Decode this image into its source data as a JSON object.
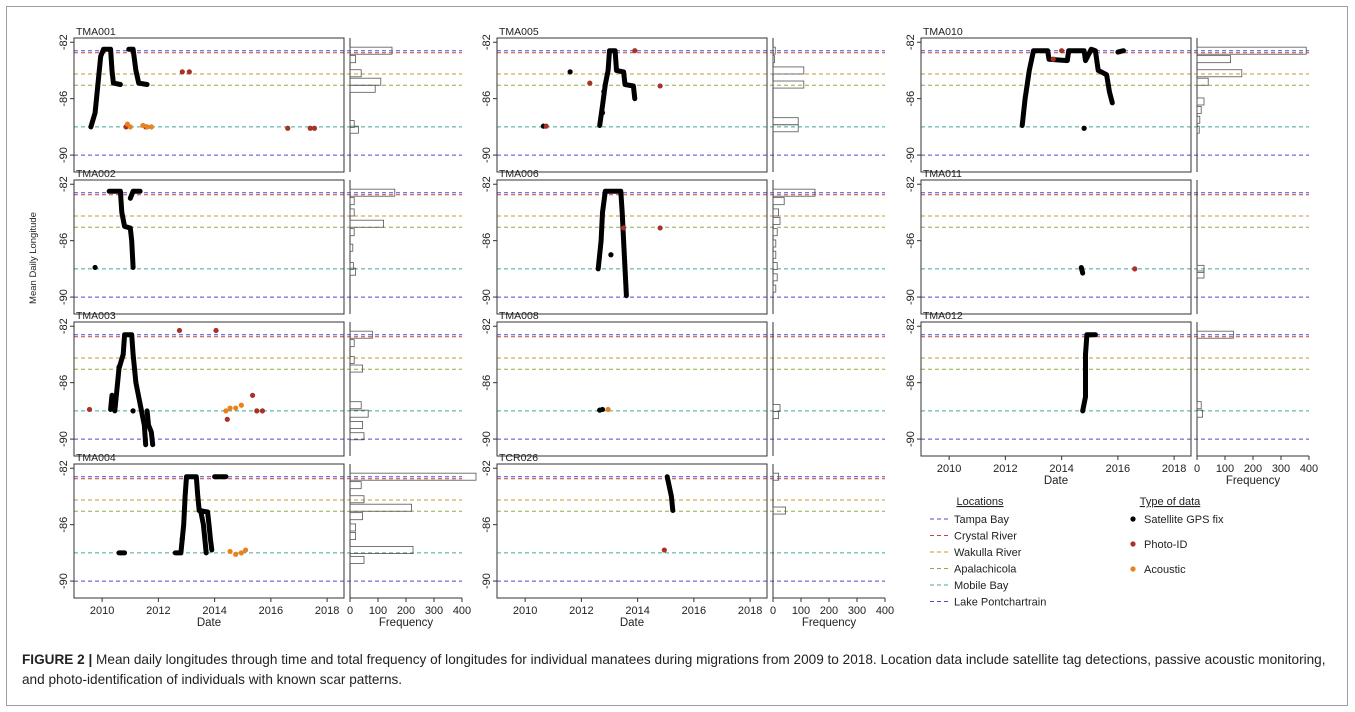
{
  "caption": {
    "label": "FIGURE 2 |",
    "text": " Mean daily longitudes through time and total frequency of longitudes for individual manatees during migrations from 2009 to 2018. Location data include satellite tag detections, passive acoustic monitoring, and photo-identification of individuals with known scar patterns."
  },
  "chart_data": {
    "type": "scatter",
    "ylabel": "Mean Daily Longitude",
    "xlabel": "Date",
    "hist_xlabel": "Frequency",
    "x_range": [
      2009,
      2018.6
    ],
    "x_ticks": [
      2010,
      2012,
      2014,
      2016,
      2018
    ],
    "y_range": [
      -91.2,
      -81.7
    ],
    "y_ticks": [
      -82,
      -86,
      -90
    ],
    "hist_range": [
      0,
      400
    ],
    "hist_ticks": [
      0,
      100,
      200,
      300,
      400
    ],
    "locations_title": "Locations",
    "datatype_title": "Type of data",
    "locations": [
      {
        "name": "Tampa Bay",
        "lon": -82.6,
        "color": "#4a4ad0"
      },
      {
        "name": "Crystal River",
        "lon": -82.75,
        "color": "#c84040"
      },
      {
        "name": "Wakulla River",
        "lon": -84.25,
        "color": "#c89a30"
      },
      {
        "name": "Apalachicola",
        "lon": -85.05,
        "color": "#8ab040"
      },
      {
        "name": "Mobile Bay",
        "lon": -88.0,
        "color": "#40a8a0"
      },
      {
        "name": "Lake Pontchartrain",
        "lon": -90.0,
        "color": "#4a4ad0"
      }
    ],
    "data_types": [
      {
        "name": "Satellite GPS fix",
        "color": "#000000"
      },
      {
        "name": "Photo-ID",
        "color": "#a83228"
      },
      {
        "name": "Acoustic",
        "color": "#e8821e"
      }
    ],
    "panels": [
      {
        "id": "TMA001",
        "tracks": [
          [
            [
              2009.6,
              -88
            ],
            [
              2009.75,
              -87
            ],
            [
              2009.85,
              -85
            ],
            [
              2009.95,
              -83
            ],
            [
              2010.05,
              -82.5
            ],
            [
              2010.3,
              -82.5
            ],
            [
              2010.35,
              -84
            ],
            [
              2010.4,
              -84.9
            ],
            [
              2010.65,
              -85
            ]
          ],
          [
            [
              2010.95,
              -82.5
            ],
            [
              2011.1,
              -82.5
            ],
            [
              2011.2,
              -84
            ],
            [
              2011.3,
              -84.9
            ],
            [
              2011.6,
              -85
            ]
          ]
        ],
        "gps": [],
        "photo": [
          [
            2010.85,
            -88
          ],
          [
            2011.55,
            -88
          ],
          [
            2012.85,
            -84.1
          ],
          [
            2013.1,
            -84.1
          ],
          [
            2016.6,
            -88.1
          ],
          [
            2017.4,
            -88.1
          ],
          [
            2017.55,
            -88.1
          ]
        ],
        "acoustic": [
          [
            2010.9,
            -87.8
          ],
          [
            2011.0,
            -88.0
          ],
          [
            2011.45,
            -87.9
          ],
          [
            2011.6,
            -88.0
          ],
          [
            2011.75,
            -88.0
          ]
        ],
        "hist": [
          [
            -82.6,
            150
          ],
          [
            -83.2,
            20
          ],
          [
            -84.2,
            40
          ],
          [
            -84.8,
            110
          ],
          [
            -85.3,
            90
          ],
          [
            -87.8,
            15
          ],
          [
            -88.2,
            30
          ]
        ]
      },
      {
        "id": "TMA005",
        "tracks": [
          [
            [
              2012.65,
              -87.9
            ],
            [
              2012.75,
              -86.5
            ],
            [
              2012.85,
              -85
            ],
            [
              2012.95,
              -84
            ],
            [
              2013.0,
              -82.6
            ],
            [
              2013.2,
              -82.6
            ],
            [
              2013.25,
              -84
            ],
            [
              2013.5,
              -84.1
            ],
            [
              2013.55,
              -85
            ],
            [
              2013.85,
              -85.1
            ],
            [
              2013.9,
              -86
            ]
          ]
        ],
        "gps": [
          [
            2010.65,
            -87.95
          ],
          [
            2011.6,
            -84.1
          ],
          [
            2012.75,
            -87.0
          ],
          [
            2012.8,
            -85.5
          ]
        ],
        "photo": [
          [
            2010.75,
            -87.95
          ],
          [
            2012.3,
            -84.9
          ],
          [
            2013.9,
            -82.6
          ],
          [
            2014.8,
            -85.1
          ]
        ],
        "acoustic": [],
        "hist": [
          [
            -82.6,
            8
          ],
          [
            -83.2,
            5
          ],
          [
            -84.0,
            110
          ],
          [
            -85.0,
            110
          ],
          [
            -87.6,
            90
          ],
          [
            -88.1,
            90
          ]
        ]
      },
      {
        "id": "TMA010",
        "tracks": [
          [
            [
              2012.6,
              -87.9
            ],
            [
              2012.7,
              -86
            ],
            [
              2012.85,
              -84
            ],
            [
              2013.0,
              -82.6
            ],
            [
              2013.5,
              -82.6
            ],
            [
              2013.55,
              -83.2
            ],
            [
              2014.2,
              -83.3
            ],
            [
              2014.25,
              -82.6
            ],
            [
              2014.8,
              -82.6
            ],
            [
              2014.85,
              -83.3
            ],
            [
              2015.05,
              -82.5
            ],
            [
              2015.2,
              -82.6
            ],
            [
              2015.3,
              -84
            ],
            [
              2015.6,
              -84.3
            ],
            [
              2015.7,
              -85.5
            ],
            [
              2015.8,
              -86.3
            ]
          ],
          [
            [
              2016.0,
              -82.7
            ],
            [
              2016.2,
              -82.6
            ]
          ]
        ],
        "gps": [
          [
            2014.8,
            -88.1
          ]
        ],
        "photo": [
          [
            2013.7,
            -83.2
          ],
          [
            2014.0,
            -82.6
          ]
        ],
        "acoustic": [],
        "hist": [
          [
            -82.6,
            390
          ],
          [
            -83.2,
            120
          ],
          [
            -84.2,
            160
          ],
          [
            -84.8,
            40
          ],
          [
            -86.2,
            25
          ],
          [
            -86.8,
            15
          ],
          [
            -87.5,
            10
          ],
          [
            -88.2,
            8
          ]
        ]
      },
      {
        "id": "TMA002",
        "tracks": [
          [
            [
              2010.25,
              -82.5
            ],
            [
              2010.65,
              -82.5
            ],
            [
              2010.7,
              -84
            ],
            [
              2010.8,
              -85
            ],
            [
              2011.0,
              -85.1
            ],
            [
              2011.05,
              -86
            ],
            [
              2011.1,
              -87.9
            ]
          ],
          [
            [
              2011.0,
              -83
            ],
            [
              2011.1,
              -82.5
            ],
            [
              2011.35,
              -82.5
            ]
          ]
        ],
        "gps": [
          [
            2009.75,
            -87.9
          ]
        ],
        "photo": [],
        "acoustic": [],
        "hist": [
          [
            -82.6,
            160
          ],
          [
            -83.2,
            15
          ],
          [
            -84.0,
            15
          ],
          [
            -84.8,
            120
          ],
          [
            -85.4,
            15
          ],
          [
            -86.5,
            10
          ],
          [
            -87.8,
            12
          ],
          [
            -88.2,
            20
          ]
        ]
      },
      {
        "id": "TMA006",
        "tracks": [
          [
            [
              2012.6,
              -88
            ],
            [
              2012.7,
              -86
            ],
            [
              2012.75,
              -84
            ],
            [
              2012.85,
              -82.5
            ],
            [
              2013.4,
              -82.5
            ],
            [
              2013.45,
              -84
            ],
            [
              2013.5,
              -86
            ],
            [
              2013.6,
              -89.9
            ]
          ]
        ],
        "gps": [
          [
            2013.05,
            -87
          ]
        ],
        "photo": [
          [
            2013.5,
            -85.1
          ],
          [
            2014.8,
            -85.1
          ]
        ],
        "acoustic": [],
        "hist": [
          [
            -82.6,
            150
          ],
          [
            -83.2,
            40
          ],
          [
            -84.0,
            20
          ],
          [
            -84.6,
            25
          ],
          [
            -85.4,
            15
          ],
          [
            -86.2,
            10
          ],
          [
            -87.0,
            10
          ],
          [
            -87.8,
            15
          ],
          [
            -88.6,
            15
          ],
          [
            -89.4,
            10
          ]
        ]
      },
      {
        "id": "TMA011",
        "tracks": [
          [
            [
              2014.7,
              -87.9
            ],
            [
              2014.75,
              -88.3
            ]
          ]
        ],
        "gps": [],
        "photo": [
          [
            2016.6,
            -88
          ]
        ],
        "acoustic": [],
        "hist": [
          [
            -88.0,
            25
          ],
          [
            -88.4,
            25
          ]
        ]
      },
      {
        "id": "TMA003",
        "tracks": [
          [
            [
              2010.45,
              -88
            ],
            [
              2010.55,
              -86
            ],
            [
              2010.6,
              -85
            ],
            [
              2010.75,
              -84
            ],
            [
              2010.8,
              -82.6
            ],
            [
              2011.05,
              -82.6
            ],
            [
              2011.1,
              -84
            ],
            [
              2011.2,
              -86
            ],
            [
              2011.3,
              -87
            ],
            [
              2011.4,
              -88
            ],
            [
              2011.5,
              -89
            ],
            [
              2011.55,
              -90.4
            ]
          ],
          [
            [
              2011.6,
              -88
            ],
            [
              2011.65,
              -89
            ],
            [
              2011.75,
              -89.5
            ],
            [
              2011.8,
              -90.4
            ]
          ],
          [
            [
              2010.3,
              -87.9
            ],
            [
              2010.35,
              -86.9
            ]
          ]
        ],
        "gps": [
          [
            2010.6,
            -84.9
          ],
          [
            2011.1,
            -88
          ]
        ],
        "photo": [
          [
            2009.55,
            -87.9
          ],
          [
            2012.75,
            -82.3
          ],
          [
            2014.05,
            -82.3
          ],
          [
            2014.45,
            -88.6
          ],
          [
            2015.35,
            -86.9
          ],
          [
            2015.5,
            -88
          ],
          [
            2015.7,
            -88
          ]
        ],
        "acoustic": [
          [
            2014.4,
            -88
          ],
          [
            2014.55,
            -87.8
          ],
          [
            2014.75,
            -87.8
          ],
          [
            2014.95,
            -87.6
          ]
        ],
        "hist": [
          [
            -82.6,
            80
          ],
          [
            -83.2,
            15
          ],
          [
            -84.4,
            15
          ],
          [
            -85.0,
            45
          ],
          [
            -87.6,
            40
          ],
          [
            -88.2,
            65
          ],
          [
            -89.0,
            45
          ],
          [
            -89.8,
            50
          ]
        ]
      },
      {
        "id": "TMA008",
        "tracks": [],
        "gps": [
          [
            2012.65,
            -87.95
          ],
          [
            2012.75,
            -87.9
          ]
        ],
        "photo": [],
        "acoustic": [
          [
            2012.95,
            -87.9
          ]
        ],
        "hist": [
          [
            -87.8,
            25
          ],
          [
            -88.3,
            20
          ]
        ]
      },
      {
        "id": "TMA012",
        "tracks": [
          [
            [
              2014.75,
              -88
            ],
            [
              2014.85,
              -87
            ],
            [
              2014.85,
              -84
            ],
            [
              2014.9,
              -82.6
            ],
            [
              2015.2,
              -82.6
            ]
          ]
        ],
        "gps": [],
        "photo": [],
        "acoustic": [],
        "hist": [
          [
            -82.6,
            130
          ],
          [
            -87.6,
            15
          ],
          [
            -88.2,
            20
          ]
        ]
      },
      {
        "id": "TMA004",
        "tracks": [
          [
            [
              2010.6,
              -88
            ],
            [
              2010.8,
              -88
            ]
          ],
          [
            [
              2012.6,
              -88
            ],
            [
              2012.8,
              -88
            ],
            [
              2012.9,
              -86
            ],
            [
              2012.95,
              -84
            ],
            [
              2013.0,
              -82.6
            ],
            [
              2013.35,
              -82.6
            ],
            [
              2013.4,
              -84
            ],
            [
              2013.45,
              -85
            ],
            [
              2013.75,
              -85.1
            ],
            [
              2013.8,
              -86
            ],
            [
              2013.85,
              -87
            ],
            [
              2013.9,
              -87.8
            ]
          ],
          [
            [
              2013.5,
              -85
            ],
            [
              2013.6,
              -86
            ],
            [
              2013.65,
              -87
            ],
            [
              2013.7,
              -88
            ]
          ],
          [
            [
              2014.0,
              -82.6
            ],
            [
              2014.4,
              -82.6
            ]
          ]
        ],
        "gps": [
          [
            2012.85,
            -87
          ]
        ],
        "photo": [],
        "acoustic": [
          [
            2014.55,
            -87.9
          ],
          [
            2014.75,
            -88.1
          ],
          [
            2014.95,
            -88
          ],
          [
            2015.1,
            -87.8
          ]
        ],
        "hist": [
          [
            -82.6,
            450
          ],
          [
            -83.2,
            40
          ],
          [
            -84.2,
            50
          ],
          [
            -84.8,
            220
          ],
          [
            -85.4,
            45
          ],
          [
            -86.2,
            20
          ],
          [
            -86.8,
            20
          ],
          [
            -87.8,
            225
          ],
          [
            -88.5,
            50
          ]
        ]
      },
      {
        "id": "TCR026",
        "tracks": [
          [
            [
              2015.05,
              -82.6
            ],
            [
              2015.2,
              -84
            ],
            [
              2015.25,
              -85
            ]
          ]
        ],
        "gps": [],
        "photo": [
          [
            2014.95,
            -87.8
          ]
        ],
        "acoustic": [],
        "hist": [
          [
            -82.6,
            20
          ],
          [
            -85.0,
            45
          ]
        ]
      }
    ]
  }
}
